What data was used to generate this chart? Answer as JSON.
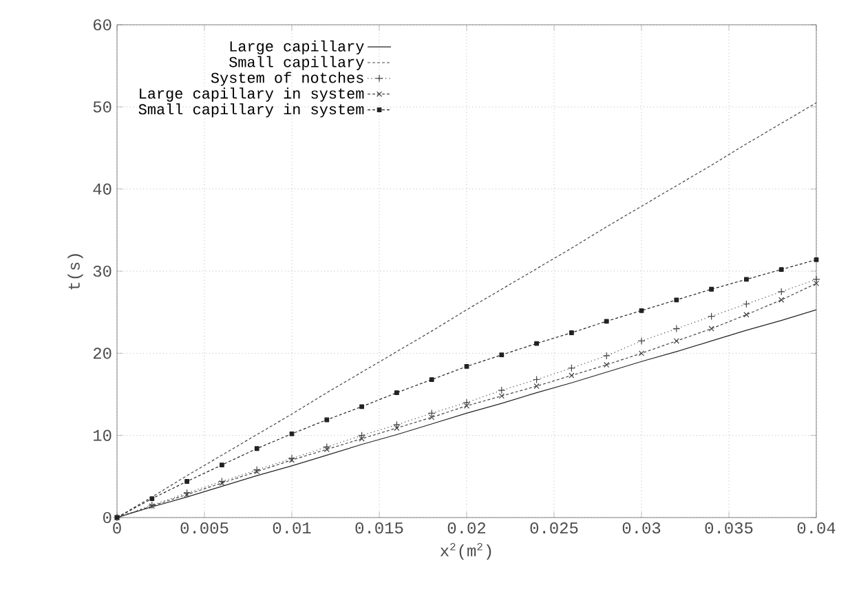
{
  "chart_data": {
    "type": "line",
    "xlabel": "x$^{2}$(m$^{2}$)",
    "ylabel": "t(s)",
    "x": [
      0,
      0.002,
      0.004,
      0.006,
      0.008,
      0.01,
      0.012,
      0.014,
      0.016,
      0.018,
      0.02,
      0.022,
      0.024,
      0.026,
      0.028,
      0.03,
      0.032,
      0.034,
      0.036,
      0.038,
      0.04
    ],
    "xlim": [
      0,
      0.04
    ],
    "ylim": [
      0,
      60
    ],
    "xticks": [
      0,
      0.005,
      0.01,
      0.015,
      0.02,
      0.025,
      0.03,
      0.035,
      0.04
    ],
    "yticks": [
      0,
      10,
      20,
      30,
      40,
      50,
      60
    ],
    "grid": true,
    "legend": "top left",
    "series": [
      {
        "name": "Large capillary",
        "color": "#222222",
        "values": [
          0,
          1.3,
          2.5,
          3.8,
          5.1,
          6.3,
          7.6,
          8.9,
          10.1,
          11.4,
          12.7,
          13.9,
          15.2,
          16.4,
          17.7,
          19.0,
          20.2,
          21.5,
          22.8,
          24.0,
          25.3
        ],
        "line_style": "solid"
      },
      {
        "name": "Small capillary",
        "color": "#444444",
        "values": [
          0,
          2.5,
          5.1,
          7.6,
          10.1,
          12.6,
          15.2,
          17.7,
          20.2,
          22.7,
          25.3,
          27.8,
          30.3,
          32.8,
          35.4,
          37.9,
          40.4,
          42.9,
          45.5,
          48.0,
          50.5
        ],
        "line_style": "dashed"
      },
      {
        "name": "System of notches",
        "color": "#444444",
        "values": [
          0,
          1.5,
          3.0,
          4.4,
          5.8,
          7.2,
          8.6,
          10.0,
          11.3,
          12.7,
          14.0,
          15.5,
          16.8,
          18.2,
          19.7,
          21.5,
          23.0,
          24.5,
          26.0,
          27.5,
          29.0
        ],
        "marker": "plus",
        "line_style": "dotted"
      },
      {
        "name": "Large capillary in system",
        "color": "#444444",
        "values": [
          0,
          1.4,
          2.8,
          4.2,
          5.6,
          7.0,
          8.3,
          9.6,
          10.9,
          12.2,
          13.6,
          14.8,
          16.0,
          17.3,
          18.6,
          20.0,
          21.5,
          23.0,
          24.7,
          26.5,
          28.5
        ],
        "marker": "cross",
        "line_style": "dashed"
      },
      {
        "name": "Small capillary in system",
        "color": "#222222",
        "values": [
          0,
          2.3,
          4.4,
          6.4,
          8.4,
          10.2,
          11.9,
          13.5,
          15.2,
          16.8,
          18.4,
          19.8,
          21.2,
          22.5,
          23.9,
          25.2,
          26.5,
          27.8,
          29.0,
          30.2,
          31.4
        ],
        "marker": "square",
        "line_style": "dashed"
      }
    ]
  }
}
